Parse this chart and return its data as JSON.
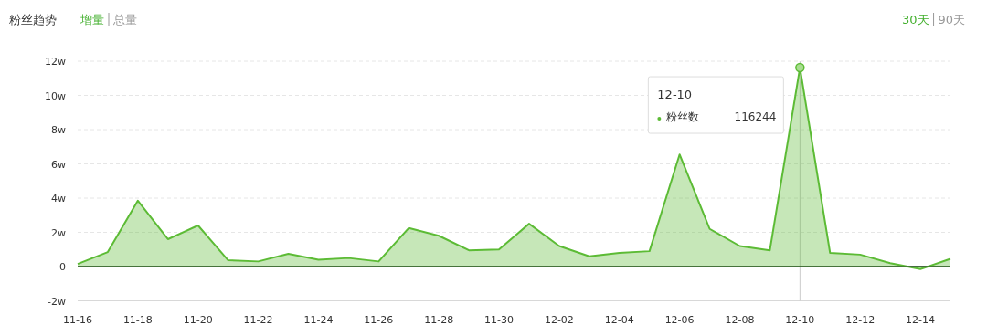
{
  "chart_data": {
    "type": "area",
    "title": "粉丝趋势",
    "annotations": [
      "增量",
      "总量",
      "30天",
      "90天",
      "12-10",
      "116244"
    ],
    "categories": [
      "11-16",
      null,
      "11-18",
      null,
      "11-20",
      null,
      "11-22",
      null,
      "11-24",
      null,
      "11-26",
      null,
      "11-28",
      null,
      "11-30",
      null,
      "12-02",
      null,
      "12-04",
      null,
      "12-06",
      null,
      "12-08",
      null,
      "12-10",
      null,
      "12-12",
      null,
      "12-14",
      null
    ],
    "series": [
      {
        "name": "粉丝数",
        "color": "#5cbb35",
        "values": [
          0.15,
          0.85,
          3.85,
          1.6,
          2.4,
          0.37,
          0.3,
          0.75,
          0.4,
          0.5,
          0.3,
          2.25,
          1.8,
          0.95,
          1.0,
          2.5,
          1.2,
          0.6,
          0.8,
          0.9,
          6.55,
          2.2,
          1.2,
          0.95,
          11.6244,
          0.8,
          0.7,
          0.2,
          -0.15,
          0.45
        ]
      }
    ],
    "ylim": [
      -2,
      12
    ],
    "yticks": [
      {
        "value": -2,
        "label": "-2w"
      },
      0,
      {
        "value": 2,
        "label": "2w"
      },
      {
        "value": 4,
        "label": "4w"
      },
      {
        "value": 6,
        "label": "6w"
      },
      {
        "value": 8,
        "label": "8w"
      },
      {
        "value": 10,
        "label": "10w"
      },
      {
        "value": 12,
        "label": "12w"
      }
    ],
    "ref_lines": [
      {
        "axis": "x",
        "value": "12-10",
        "color": "#cccccc"
      }
    ],
    "grid": "y",
    "marker": "none",
    "line_style": "solid"
  }
}
